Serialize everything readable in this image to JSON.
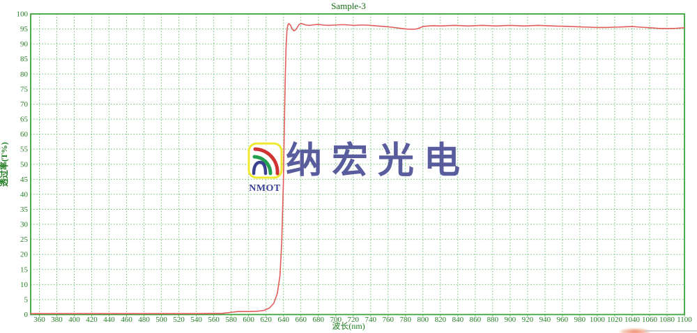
{
  "chart": {
    "title": "Sample-3",
    "title_color": "#156b15",
    "x_axis_label": "波长(nm)",
    "y_axis_label": "透过率(T%)",
    "axis_label_color": "#1e7a1e",
    "tick_label_color": "#257c25",
    "border_color": "#3aa43a",
    "grid_color": "#6cbd6c",
    "background": "#ffffff"
  },
  "chart_data": {
    "type": "line",
    "title": "Sample-3",
    "xlabel": "波长(nm)",
    "ylabel": "透过率(T%)",
    "xlim": [
      350,
      1100
    ],
    "ylim": [
      0,
      100
    ],
    "x_tick_start": 360,
    "x_tick_step": 20,
    "y_tick_start": 0,
    "y_tick_step": 5,
    "grid": "dotted",
    "legend": "none",
    "series": [
      {
        "name": "Sample-3",
        "color": "#e25c5c",
        "points": [
          [
            350,
            0.3
          ],
          [
            380,
            0.3
          ],
          [
            420,
            0.3
          ],
          [
            460,
            0.3
          ],
          [
            500,
            0.3
          ],
          [
            540,
            0.3
          ],
          [
            570,
            0.4
          ],
          [
            582,
            0.8
          ],
          [
            588,
            1.0
          ],
          [
            600,
            1.0
          ],
          [
            610,
            1.1
          ],
          [
            618,
            1.4
          ],
          [
            624,
            2.2
          ],
          [
            629,
            3.8
          ],
          [
            633,
            7
          ],
          [
            636,
            13
          ],
          [
            638,
            24
          ],
          [
            640,
            45
          ],
          [
            641,
            62
          ],
          [
            642,
            78
          ],
          [
            643,
            89
          ],
          [
            644,
            94.5
          ],
          [
            645,
            96.2
          ],
          [
            646,
            96.8
          ],
          [
            648,
            96.3
          ],
          [
            650,
            95.0
          ],
          [
            652,
            94.4
          ],
          [
            654,
            94.7
          ],
          [
            656,
            95.6
          ],
          [
            658,
            96.5
          ],
          [
            660,
            96.8
          ],
          [
            663,
            96.6
          ],
          [
            666,
            96.3
          ],
          [
            670,
            96.2
          ],
          [
            675,
            96.4
          ],
          [
            680,
            96.5
          ],
          [
            686,
            96.3
          ],
          [
            692,
            96.2
          ],
          [
            698,
            96.3
          ],
          [
            704,
            96.4
          ],
          [
            710,
            96.4
          ],
          [
            716,
            96.3
          ],
          [
            722,
            96.2
          ],
          [
            728,
            96.3
          ],
          [
            734,
            96.3
          ],
          [
            740,
            96.2
          ],
          [
            748,
            96.0
          ],
          [
            756,
            95.8
          ],
          [
            764,
            95.6
          ],
          [
            772,
            95.3
          ],
          [
            780,
            95.0
          ],
          [
            786,
            94.9
          ],
          [
            790,
            94.9
          ],
          [
            794,
            95.1
          ],
          [
            800,
            95.8
          ],
          [
            806,
            96.0
          ],
          [
            812,
            96.1
          ],
          [
            820,
            96.0
          ],
          [
            828,
            96.1
          ],
          [
            836,
            96.2
          ],
          [
            844,
            96.1
          ],
          [
            852,
            96.0
          ],
          [
            860,
            96.1
          ],
          [
            868,
            96.2
          ],
          [
            876,
            96.1
          ],
          [
            884,
            96.0
          ],
          [
            892,
            96.1
          ],
          [
            900,
            96.2
          ],
          [
            908,
            96.1
          ],
          [
            916,
            96.0
          ],
          [
            924,
            96.1
          ],
          [
            932,
            96.2
          ],
          [
            940,
            96.1
          ],
          [
            950,
            96.0
          ],
          [
            960,
            95.9
          ],
          [
            970,
            95.8
          ],
          [
            980,
            95.7
          ],
          [
            990,
            95.6
          ],
          [
            1000,
            95.5
          ],
          [
            1010,
            95.5
          ],
          [
            1020,
            95.6
          ],
          [
            1030,
            95.7
          ],
          [
            1040,
            95.8
          ],
          [
            1050,
            95.6
          ],
          [
            1060,
            95.4
          ],
          [
            1070,
            95.2
          ],
          [
            1080,
            95.1
          ],
          [
            1090,
            95.2
          ],
          [
            1100,
            95.4
          ]
        ]
      }
    ]
  },
  "watermark": {
    "logo_text": "NMOT",
    "logo_text_color": "#3a3f96",
    "company_text": "纳宏光电",
    "company_text_color": "#4c4f95",
    "logo_box_color": "#eee82e",
    "arc_red": "#d03232",
    "arc_green": "#22a04e",
    "arc_navy": "#39418f"
  }
}
